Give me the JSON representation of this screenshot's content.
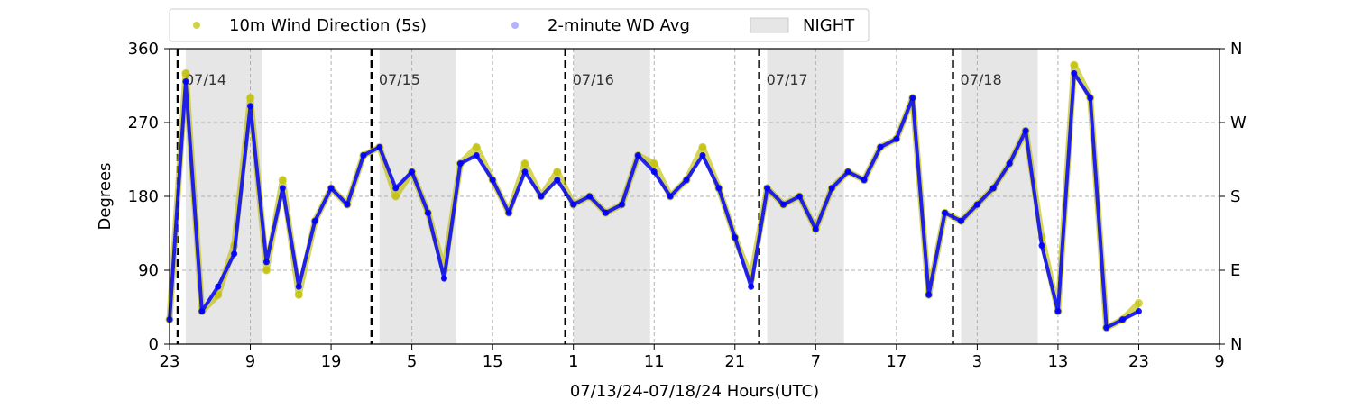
{
  "chart_data": {
    "type": "scatter",
    "title": "",
    "xlabel": "07/13/24-07/18/24  Hours(UTC)",
    "ylabel": "Degrees",
    "x_unit": "hours elapsed since 07/13 23 UTC",
    "xlim": [
      0,
      130
    ],
    "ylim": [
      0,
      360
    ],
    "grid": true,
    "legend_placement": "top-left, above plot",
    "x_tick_labels": [
      "23",
      "9",
      "19",
      "5",
      "15",
      "1",
      "11",
      "21",
      "7",
      "17",
      "3",
      "13",
      "23",
      "9"
    ],
    "x_tick_values": [
      0,
      10,
      20,
      30,
      40,
      50,
      60,
      70,
      80,
      90,
      100,
      110,
      120,
      130
    ],
    "y_tick_labels": [
      "0",
      "90",
      "180",
      "270",
      "360"
    ],
    "y_tick_values": [
      0,
      90,
      180,
      270,
      360
    ],
    "right_axis_labels": [
      "N",
      "E",
      "S",
      "W",
      "N"
    ],
    "day_markers": [
      {
        "x": 1,
        "label": "07/14"
      },
      {
        "x": 25,
        "label": "07/15"
      },
      {
        "x": 49,
        "label": "07/16"
      },
      {
        "x": 73,
        "label": "07/17"
      },
      {
        "x": 97,
        "label": "07/18"
      }
    ],
    "night_periods": [
      [
        2,
        11.5
      ],
      [
        26,
        35.5
      ],
      [
        50,
        59.5
      ],
      [
        74,
        83.5
      ],
      [
        98,
        107.5
      ]
    ],
    "series": [
      {
        "name": "10m Wind Direction (5s)",
        "color": "#bfbf00",
        "x": [
          0,
          2,
          4,
          6,
          8,
          10,
          12,
          14,
          16,
          18,
          20,
          22,
          24,
          26,
          28,
          30,
          32,
          34,
          36,
          38,
          40,
          42,
          44,
          46,
          48,
          50,
          52,
          54,
          56,
          58,
          60,
          62,
          64,
          66,
          68,
          70,
          72,
          74,
          76,
          78,
          80,
          82,
          84,
          86,
          88,
          90,
          92,
          94,
          96,
          98,
          100,
          102,
          104,
          106,
          108,
          110,
          112,
          114,
          116,
          118,
          120
        ],
        "y": [
          30,
          330,
          40,
          60,
          120,
          300,
          90,
          200,
          60,
          150,
          190,
          170,
          230,
          240,
          180,
          210,
          160,
          90,
          220,
          240,
          200,
          160,
          220,
          180,
          210,
          170,
          180,
          160,
          170,
          230,
          220,
          180,
          200,
          240,
          190,
          130,
          80,
          190,
          170,
          180,
          140,
          190,
          210,
          200,
          240,
          250,
          300,
          60,
          160,
          150,
          170,
          190,
          220,
          260,
          130,
          40,
          340,
          300,
          20,
          30,
          50
        ]
      },
      {
        "name": "2-minute WD Avg",
        "color": "#0000ff",
        "x": [
          0,
          2,
          4,
          6,
          8,
          10,
          12,
          14,
          16,
          18,
          20,
          22,
          24,
          26,
          28,
          30,
          32,
          34,
          36,
          38,
          40,
          42,
          44,
          46,
          48,
          50,
          52,
          54,
          56,
          58,
          60,
          62,
          64,
          66,
          68,
          70,
          72,
          74,
          76,
          78,
          80,
          82,
          84,
          86,
          88,
          90,
          92,
          94,
          96,
          98,
          100,
          102,
          104,
          106,
          108,
          110,
          112,
          114,
          116,
          118,
          120
        ],
        "y": [
          30,
          320,
          40,
          70,
          110,
          290,
          100,
          190,
          70,
          150,
          190,
          170,
          230,
          240,
          190,
          210,
          160,
          80,
          220,
          230,
          200,
          160,
          210,
          180,
          200,
          170,
          180,
          160,
          170,
          230,
          210,
          180,
          200,
          230,
          190,
          130,
          70,
          190,
          170,
          180,
          140,
          190,
          210,
          200,
          240,
          250,
          300,
          60,
          160,
          150,
          170,
          190,
          220,
          260,
          120,
          40,
          330,
          300,
          20,
          30,
          40
        ]
      }
    ],
    "night_label": "NIGHT"
  }
}
